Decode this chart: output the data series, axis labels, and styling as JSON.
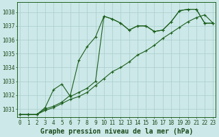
{
  "title": "Graphe pression niveau de la mer (hPa)",
  "bg_color": "#cce8e8",
  "grid_color": "#aacccc",
  "line_color": "#1a5e1a",
  "marker_color": "#1a5e1a",
  "xlim": [
    -0.3,
    23.3
  ],
  "ylim": [
    1030.4,
    1038.7
  ],
  "yticks": [
    1031,
    1032,
    1033,
    1034,
    1035,
    1036,
    1037,
    1038
  ],
  "xticks": [
    0,
    1,
    2,
    3,
    4,
    5,
    6,
    7,
    8,
    9,
    10,
    11,
    12,
    13,
    14,
    15,
    16,
    17,
    18,
    19,
    20,
    21,
    22,
    23
  ],
  "series1_x": [
    0,
    1,
    2,
    3,
    4,
    5,
    6,
    7,
    8,
    9,
    10,
    11,
    12,
    13,
    14,
    15,
    16,
    17,
    18,
    19,
    20,
    21,
    22,
    23
  ],
  "series1_y": [
    1030.6,
    1030.6,
    1030.6,
    1031.0,
    1031.2,
    1031.5,
    1032.0,
    1034.5,
    1035.5,
    1036.2,
    1037.7,
    1037.5,
    1037.2,
    1036.7,
    1037.0,
    1037.0,
    1036.6,
    1036.7,
    1037.3,
    1038.1,
    1038.2,
    1038.2,
    1037.2,
    1037.2
  ],
  "series2_x": [
    0,
    1,
    2,
    3,
    4,
    5,
    6,
    7,
    8,
    9,
    10,
    11,
    12,
    13,
    14,
    15,
    16,
    17,
    18,
    19,
    20,
    21,
    22,
    23
  ],
  "series2_y": [
    1030.6,
    1030.6,
    1030.6,
    1031.1,
    1032.4,
    1032.8,
    1031.9,
    1032.2,
    1032.5,
    1033.0,
    1037.7,
    1037.5,
    1037.2,
    1036.7,
    1037.0,
    1037.0,
    1036.6,
    1036.7,
    1037.3,
    1038.1,
    1038.2,
    1038.2,
    1037.2,
    1037.2
  ],
  "series3_x": [
    0,
    1,
    2,
    3,
    4,
    5,
    6,
    7,
    8,
    9,
    10,
    11,
    12,
    13,
    14,
    15,
    16,
    17,
    18,
    19,
    20,
    21,
    22,
    23
  ],
  "series3_y": [
    1030.6,
    1030.6,
    1030.6,
    1030.9,
    1031.1,
    1031.4,
    1031.7,
    1031.9,
    1032.2,
    1032.7,
    1033.2,
    1033.7,
    1034.0,
    1034.4,
    1034.9,
    1035.2,
    1035.6,
    1036.1,
    1036.5,
    1036.9,
    1037.3,
    1037.6,
    1037.8,
    1037.2
  ],
  "tick_fontsize": 5.5,
  "xlabel_fontsize": 7.0
}
